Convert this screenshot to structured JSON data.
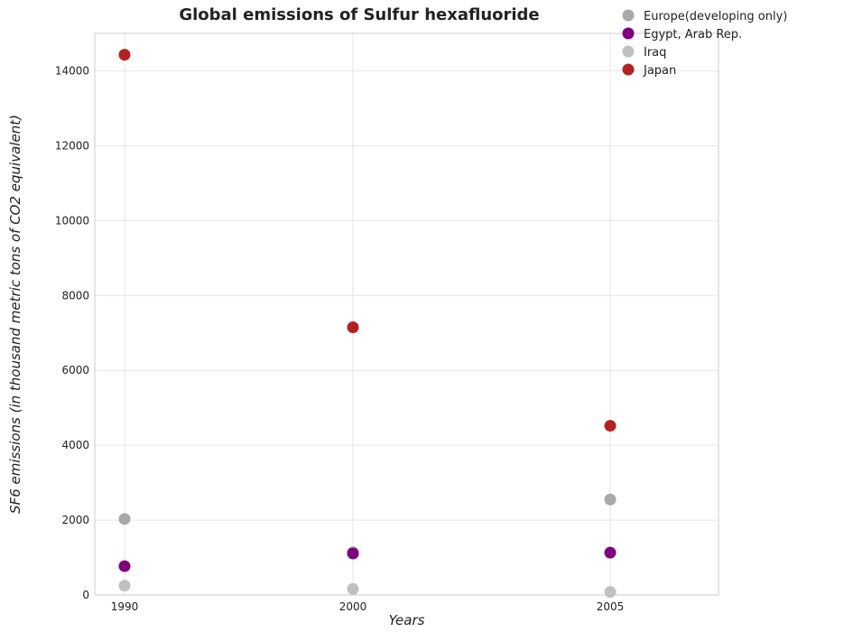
{
  "chart_data": {
    "type": "scatter",
    "title": "Global emissions of Sulfur hexafluoride",
    "xlabel": "Years",
    "ylabel": "SF6 emissions (in thousand metric tons of CO2 equivalent)",
    "categories": [
      "1990",
      "2000",
      "2005"
    ],
    "ylim": [
      0,
      15000
    ],
    "yticks": [
      0,
      2000,
      4000,
      6000,
      8000,
      10000,
      12000,
      14000
    ],
    "grid": true,
    "legend_position": "top-right",
    "series": [
      {
        "name": "Europe(developing only)",
        "color": "#a9a9a9",
        "values": [
          2030,
          1140,
          2550
        ]
      },
      {
        "name": "Egypt, Arab Rep.",
        "color": "#800080",
        "values": [
          770,
          1110,
          1130
        ]
      },
      {
        "name": "Iraq",
        "color": "#c0c0c0",
        "values": [
          250,
          160,
          80
        ]
      },
      {
        "name": "Japan",
        "color": "#b22222",
        "values": [
          14430,
          7150,
          4520
        ]
      }
    ]
  }
}
